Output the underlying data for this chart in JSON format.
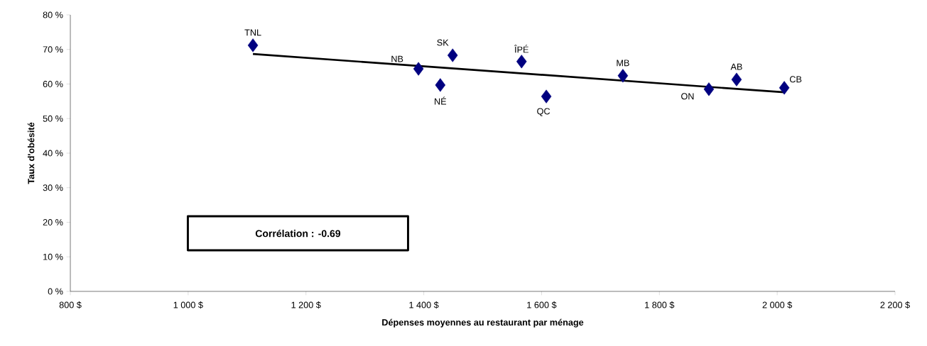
{
  "chart_data": {
    "type": "scatter",
    "xlabel": "Dépenses moyennes au restaurant par ménage",
    "ylabel": "Taux d'obésité",
    "series": [
      {
        "color": "#000080",
        "marker": "diamond",
        "x": [
          1110,
          1391,
          1428,
          1449,
          1566,
          1608,
          1738,
          1884,
          1931,
          2012
        ],
        "values": [
          71.2,
          64.4,
          59.7,
          68.3,
          66.5,
          56.4,
          62.4,
          58.5,
          61.3,
          58.9
        ]
      },
      {
        "type": "line",
        "color": "#000000",
        "marker": "none",
        "line_style": "solid",
        "x": [
          1110,
          2012
        ],
        "values": [
          68.7,
          57.6
        ]
      }
    ],
    "annotations": [
      {
        "text": "TNL",
        "x": 1110,
        "y": 71.2
      },
      {
        "text": "NB",
        "x": 1391,
        "y": 64.4
      },
      {
        "text": "NÉ",
        "x": 1428,
        "y": 59.7
      },
      {
        "text": "SK",
        "x": 1449,
        "y": 68.3
      },
      {
        "text": "ÎPÉ",
        "x": 1566,
        "y": 66.5
      },
      {
        "text": "QC",
        "x": 1608,
        "y": 56.4
      },
      {
        "text": "MB",
        "x": 1738,
        "y": 62.4
      },
      {
        "text": "ON",
        "x": 1884,
        "y": 58.5
      },
      {
        "text": "AB",
        "x": 1931,
        "y": 61.3
      },
      {
        "text": "CB",
        "x": 2012,
        "y": 58.9
      },
      "Corrélation : -0.69"
    ],
    "xlim": [
      800,
      2200
    ],
    "ylim": [
      0,
      80
    ],
    "xticks": [
      {
        "value": 800,
        "label": "800 $"
      },
      {
        "value": 1000,
        "label": "1 000 $"
      },
      {
        "value": 1200,
        "label": "1 200 $"
      },
      {
        "value": 1400,
        "label": "1 400 $"
      },
      {
        "value": 1600,
        "label": "1 600 $"
      },
      {
        "value": 1800,
        "label": "1 800 $"
      },
      {
        "value": 2000,
        "label": "2 000 $"
      },
      {
        "value": 2200,
        "label": "2 200 $"
      }
    ],
    "yticks": [
      {
        "value": 0,
        "label": "0 %"
      },
      {
        "value": 10,
        "label": "10 %"
      },
      {
        "value": 20,
        "label": "20 %"
      },
      {
        "value": 30,
        "label": "30 %"
      },
      {
        "value": 40,
        "label": "40 %"
      },
      {
        "value": 50,
        "label": "50 %"
      },
      {
        "value": 60,
        "label": "60 %"
      },
      {
        "value": 70,
        "label": "70 %"
      },
      {
        "value": 80,
        "label": "80 %"
      }
    ],
    "grid": false
  }
}
